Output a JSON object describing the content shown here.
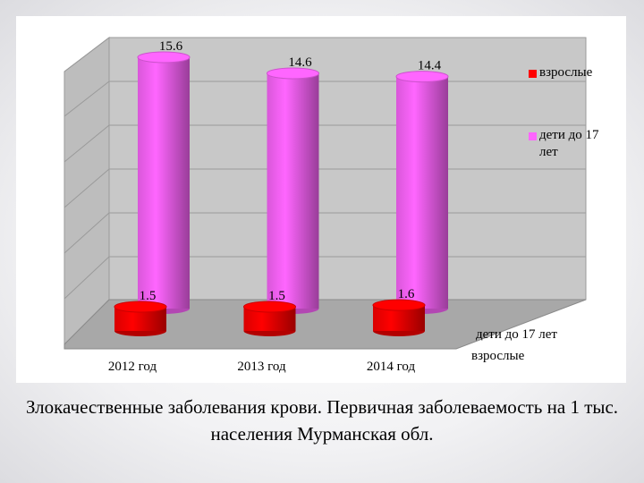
{
  "chart_data": {
    "type": "bar3d",
    "title": "Злокачественные заболевания крови. Первичная заболеваемость на 1 тыс. населения Мурманская обл.",
    "categories": [
      "2012 год",
      "2013 год",
      "2014 год"
    ],
    "series": [
      {
        "name": "дети до 17 лет",
        "color": "#ff66ff",
        "values": [
          15.6,
          14.6,
          14.4
        ]
      },
      {
        "name": "взрослые",
        "color": "#ff0000",
        "values": [
          1.5,
          1.5,
          1.6
        ]
      }
    ],
    "legend": "right"
  }
}
